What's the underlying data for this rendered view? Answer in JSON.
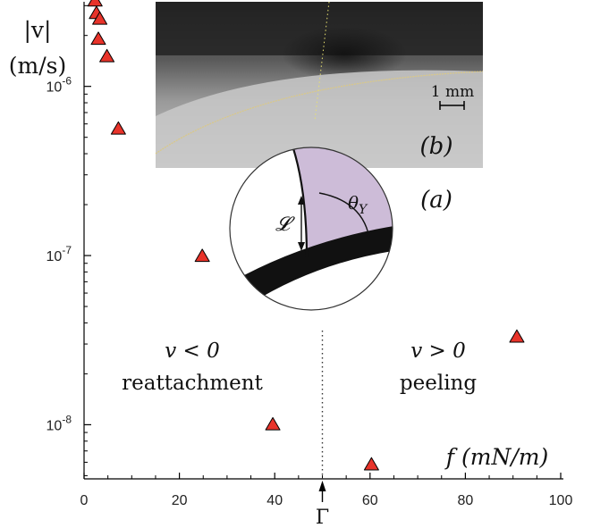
{
  "chart_data": {
    "type": "scatter",
    "xlabel": "f (mN/m)",
    "ylabel": "|v| (m/s)",
    "xlim": [
      0,
      100
    ],
    "ylim_log10": [
      -8.32,
      -5.5
    ],
    "yscale": "log",
    "x_ticks": [
      0,
      20,
      40,
      60,
      80,
      100
    ],
    "x_tick_labels": [
      "0",
      "20",
      "40",
      "60",
      "80",
      "100"
    ],
    "y_ticks": [
      -8,
      -7,
      -6
    ],
    "y_tick_labels": [
      "10",
      "10",
      "10"
    ],
    "y_tick_exponents": [
      "-8",
      "-7",
      "-6"
    ],
    "marker": "triangle",
    "marker_color": "#e8332a",
    "points": [
      {
        "x": 2.3,
        "y": 3.2e-06
      },
      {
        "x": 2.6,
        "y": 2.7e-06
      },
      {
        "x": 3.3,
        "y": 2.5e-06
      },
      {
        "x": 3.0,
        "y": 1.9e-06
      },
      {
        "x": 4.8,
        "y": 1.5e-06
      },
      {
        "x": 7.2,
        "y": 5.6e-07
      },
      {
        "x": 24.8,
        "y": 9.9e-08
      },
      {
        "x": 39.6,
        "y": 1e-08
      },
      {
        "x": 60.3,
        "y": 5.8e-09
      },
      {
        "x": 90.8,
        "y": 3.3e-08
      }
    ],
    "threshold": {
      "x": 50,
      "label": "Γ"
    },
    "annotations": {
      "left_line1": "v < 0",
      "left_line2": "reattachment",
      "right_line1": "v > 0",
      "right_line2": "peeling"
    }
  },
  "insets": {
    "photo_label": "(b)",
    "scale_bar_label": "1 mm",
    "diagram_label": "(a)",
    "theta_label": "θ",
    "theta_sub": "Y",
    "length_label": "𝓛"
  }
}
